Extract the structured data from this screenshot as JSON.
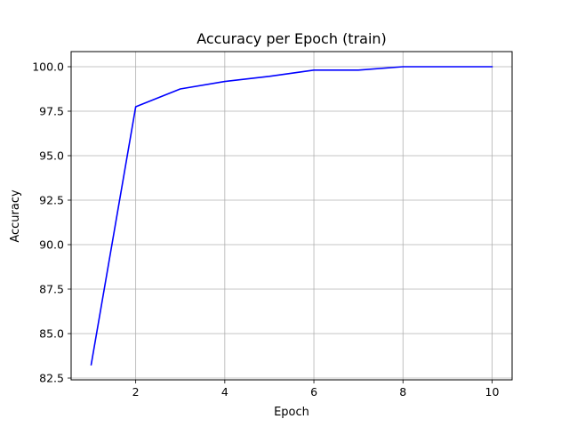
{
  "chart_data": {
    "type": "line",
    "title": "Accuracy per Epoch (train)",
    "xlabel": "Epoch",
    "ylabel": "Accuracy",
    "x": [
      1,
      2,
      3,
      4,
      5,
      6,
      7,
      8,
      9,
      10
    ],
    "series": [
      {
        "values": [
          83.25,
          97.75,
          98.75,
          99.17,
          99.46,
          99.81,
          99.81,
          100.0,
          100.0,
          100.0
        ],
        "color": "#0000ff"
      }
    ],
    "xlim": [
      0.55,
      10.45
    ],
    "ylim": [
      82.4,
      100.85
    ],
    "xticks": [
      2,
      4,
      6,
      8,
      10
    ],
    "xtick_labels": [
      "2",
      "4",
      "6",
      "8",
      "10"
    ],
    "yticks": [
      82.5,
      85.0,
      87.5,
      90.0,
      92.5,
      95.0,
      97.5,
      100.0
    ],
    "ytick_labels": [
      "82.5",
      "85.0",
      "87.5",
      "90.0",
      "92.5",
      "95.0",
      "97.5",
      "100.0"
    ],
    "grid": true
  }
}
